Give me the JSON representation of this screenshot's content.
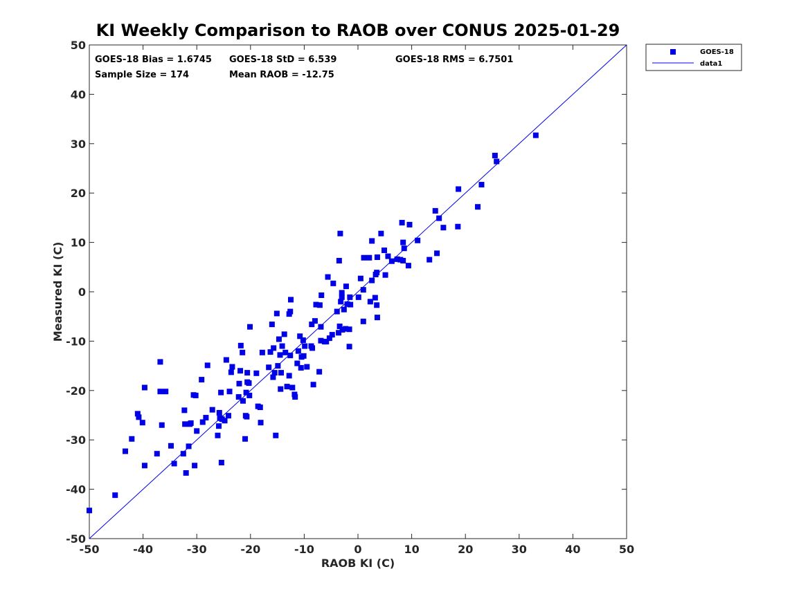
{
  "chart_data": {
    "type": "scatter",
    "title": "KI Weekly Comparison to RAOB over CONUS 2025-01-29",
    "xlabel": "RAOB KI (C)",
    "ylabel": "Measured KI (C)",
    "xlim": [
      -50,
      50
    ],
    "ylim": [
      -50,
      50
    ],
    "xticks": [
      -50,
      -40,
      -30,
      -20,
      -10,
      0,
      10,
      20,
      30,
      40,
      50
    ],
    "yticks": [
      -50,
      -40,
      -30,
      -20,
      -10,
      0,
      10,
      20,
      30,
      40,
      50
    ],
    "grid": false,
    "legend_position": "top-right",
    "marker_color": "#0000e6",
    "line_color": "#0000e6",
    "stats": {
      "bias": "GOES-18 Bias = 1.6745",
      "std": "GOES-18 StD = 6.539",
      "rms": "GOES-18 RMS = 6.7501",
      "sample": "Sample Size = 174",
      "mean": "Mean RAOB = -12.75"
    },
    "series": [
      {
        "name": "GOES-18",
        "kind": "markers",
        "points": [
          [
            -50,
            -44.3
          ],
          [
            -45.2,
            -41.2
          ],
          [
            -43.3,
            -32.3
          ],
          [
            -42.1,
            -29.8
          ],
          [
            -41,
            -24.7
          ],
          [
            -40.8,
            -25.4
          ],
          [
            -40.1,
            -26.5
          ],
          [
            -39.7,
            -35.2
          ],
          [
            -39.7,
            -19.4
          ],
          [
            -37.4,
            -32.8
          ],
          [
            -36.8,
            -14.2
          ],
          [
            -36.8,
            -20.2
          ],
          [
            -36.5,
            -27
          ],
          [
            -35.8,
            -20.2
          ],
          [
            -34.8,
            -31.2
          ],
          [
            -34.2,
            -34.8
          ],
          [
            -32.5,
            -32.8
          ],
          [
            -32.3,
            -24
          ],
          [
            -32.2,
            -26.8
          ],
          [
            -32,
            -36.7
          ],
          [
            -31.5,
            -31.3
          ],
          [
            -31.3,
            -26.8
          ],
          [
            -31.1,
            -26.6
          ],
          [
            -30.6,
            -20.9
          ],
          [
            -30.4,
            -35.2
          ],
          [
            -30.2,
            -21
          ],
          [
            -30,
            -28.2
          ],
          [
            -29.1,
            -17.8
          ],
          [
            -28.9,
            -26.4
          ],
          [
            -28.3,
            -25.5
          ],
          [
            -28,
            -14.9
          ],
          [
            -27.1,
            -23.9
          ],
          [
            -26.1,
            -29.1
          ],
          [
            -25.9,
            -27.2
          ],
          [
            -25.8,
            -24.5
          ],
          [
            -25.7,
            -25.6
          ],
          [
            -25.5,
            -20.4
          ],
          [
            -25.4,
            -34.6
          ],
          [
            -25.3,
            -25.8
          ],
          [
            -24.8,
            -26.1
          ],
          [
            -24.5,
            -13.8
          ],
          [
            -24.1,
            -25.1
          ],
          [
            -23.9,
            -20.2
          ],
          [
            -23.6,
            -16.3
          ],
          [
            -23.4,
            -15.2
          ],
          [
            -22.2,
            -21.3
          ],
          [
            -22.1,
            -18.6
          ],
          [
            -21.9,
            -16
          ],
          [
            -21.8,
            -10.9
          ],
          [
            -21.5,
            -12.3
          ],
          [
            -21.4,
            -22.1
          ],
          [
            -21,
            -29.8
          ],
          [
            -20.9,
            -25.1
          ],
          [
            -20.8,
            -20.4
          ],
          [
            -20.7,
            -25.3
          ],
          [
            -20.6,
            -16.4
          ],
          [
            -20.6,
            -18.3
          ],
          [
            -20.3,
            -18.5
          ],
          [
            -20.2,
            -21
          ],
          [
            -20.1,
            -7.1
          ],
          [
            -18.9,
            -16.5
          ],
          [
            -18.6,
            -23.2
          ],
          [
            -18.2,
            -23.4
          ],
          [
            -18.1,
            -26.5
          ],
          [
            -17.8,
            -12.3
          ],
          [
            -16.6,
            -15.3
          ],
          [
            -16.3,
            -12.2
          ],
          [
            -16,
            -6.6
          ],
          [
            -15.8,
            -17.3
          ],
          [
            -15.7,
            -11.4
          ],
          [
            -15.5,
            -16.4
          ],
          [
            -15.3,
            -29.1
          ],
          [
            -15.1,
            -4.4
          ],
          [
            -14.9,
            -15
          ],
          [
            -14.7,
            -9.6
          ],
          [
            -14.5,
            -12.8
          ],
          [
            -14.4,
            -19.7
          ],
          [
            -14.3,
            -16.4
          ],
          [
            -14.1,
            -11
          ],
          [
            -13.7,
            -8.6
          ],
          [
            -13.5,
            -12.3
          ],
          [
            -13.2,
            -19.2
          ],
          [
            -12.8,
            -4.5
          ],
          [
            -12.8,
            -17
          ],
          [
            -12.6,
            -12.9
          ],
          [
            -12.6,
            -4
          ],
          [
            -12.5,
            -1.6
          ],
          [
            -12.2,
            -19.4
          ],
          [
            -11.8,
            -20.8
          ],
          [
            -11.7,
            -21.3
          ],
          [
            -11.3,
            -14.5
          ],
          [
            -11.1,
            -12
          ],
          [
            -10.8,
            -9
          ],
          [
            -10.6,
            -15.4
          ],
          [
            -10.5,
            -13.2
          ],
          [
            -10.2,
            -9.8
          ],
          [
            -10.1,
            -13
          ],
          [
            -9.9,
            -11
          ],
          [
            -9.5,
            -15.2
          ],
          [
            -8.7,
            -11
          ],
          [
            -8.6,
            -6.6
          ],
          [
            -8.5,
            -11.4
          ],
          [
            -8.3,
            -18.8
          ],
          [
            -8,
            -5.9
          ],
          [
            -7.8,
            -2.6
          ],
          [
            -7.2,
            -16.2
          ],
          [
            -7.1,
            -2.7
          ],
          [
            -6.9,
            -9.9
          ],
          [
            -6.9,
            -7.1
          ],
          [
            -6.8,
            -0.7
          ],
          [
            -6.2,
            -10.1
          ],
          [
            -5.9,
            -10.1
          ],
          [
            -5.6,
            3
          ],
          [
            -5.3,
            -9.4
          ],
          [
            -4.8,
            -8.7
          ],
          [
            -4.6,
            1.7
          ],
          [
            -3.9,
            -4
          ],
          [
            -3.6,
            -8.3
          ],
          [
            -3.5,
            6.3
          ],
          [
            -3.4,
            -7
          ],
          [
            -3.3,
            11.8
          ],
          [
            -3.2,
            -2
          ],
          [
            -3,
            -1.1
          ],
          [
            -3,
            -0.2
          ],
          [
            -2.9,
            -7.7
          ],
          [
            -2.6,
            -3.6
          ],
          [
            -2.3,
            -7.5
          ],
          [
            -2.2,
            1.1
          ],
          [
            -2,
            -2.5
          ],
          [
            -1.6,
            -7.6
          ],
          [
            -1.6,
            -11.1
          ],
          [
            -1.5,
            -1.1
          ],
          [
            -1.4,
            -2.6
          ],
          [
            0.1,
            -1.1
          ],
          [
            0.5,
            2.7
          ],
          [
            1,
            0.4
          ],
          [
            1,
            -6
          ],
          [
            1.1,
            6.9
          ],
          [
            2.1,
            6.9
          ],
          [
            2.3,
            -2
          ],
          [
            2.6,
            10.3
          ],
          [
            2.6,
            2.3
          ],
          [
            3.2,
            -1.2
          ],
          [
            3.3,
            3.5
          ],
          [
            3.5,
            3.9
          ],
          [
            3.5,
            -2.7
          ],
          [
            3.6,
            7
          ],
          [
            3.6,
            -5.2
          ],
          [
            4.3,
            11.8
          ],
          [
            4.9,
            8.4
          ],
          [
            5.1,
            3.4
          ],
          [
            5.6,
            7.2
          ],
          [
            6.3,
            6.2
          ],
          [
            7.3,
            6.6
          ],
          [
            7.9,
            6.5
          ],
          [
            8.2,
            14
          ],
          [
            8.4,
            6.3
          ],
          [
            8.4,
            10
          ],
          [
            8.6,
            8.8
          ],
          [
            9.4,
            5.3
          ],
          [
            9.6,
            13.6
          ],
          [
            11.1,
            10.4
          ],
          [
            13.3,
            6.5
          ],
          [
            14.4,
            16.4
          ],
          [
            14.7,
            7.8
          ],
          [
            15.1,
            14.9
          ],
          [
            15.9,
            13
          ],
          [
            18.7,
            20.8
          ],
          [
            18.6,
            13.2
          ],
          [
            22.3,
            17.2
          ],
          [
            23,
            21.7
          ],
          [
            25.5,
            27.6
          ],
          [
            25.8,
            26.4
          ],
          [
            33.1,
            31.7
          ]
        ]
      },
      {
        "name": "data1",
        "kind": "line",
        "points": [
          [
            -50,
            -50
          ],
          [
            50,
            50
          ]
        ]
      }
    ]
  }
}
